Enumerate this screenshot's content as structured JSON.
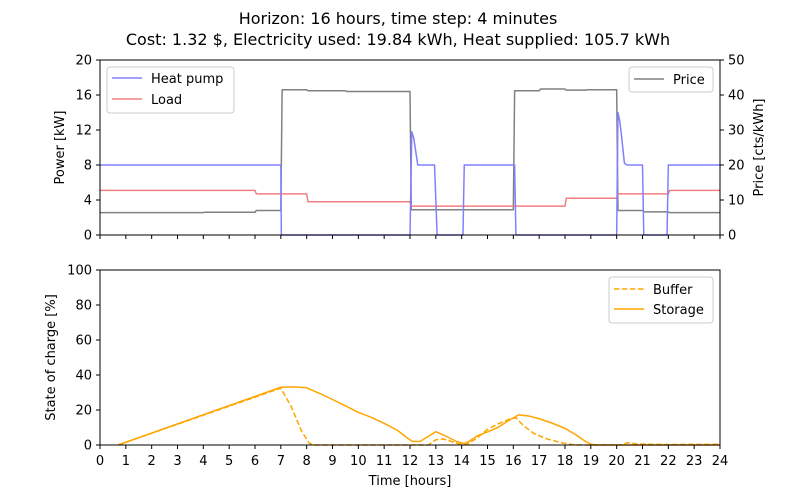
{
  "figure": {
    "title_line1": "Horizon: 16 hours, time step: 4 minutes",
    "title_line2": "Cost: 1.32 $, Electricity used: 19.84 kWh, Heat supplied: 105.7 kWh"
  },
  "chart_data": [
    {
      "type": "line",
      "ylabel": "Power [kW]",
      "y2label": "Price [cts/kWh]",
      "xlim": [
        0,
        24
      ],
      "ylim": [
        0,
        20
      ],
      "y2lim": [
        0,
        50
      ],
      "yticks": [
        0,
        4,
        8,
        12,
        16,
        20
      ],
      "y2ticks": [
        0,
        10,
        20,
        30,
        40,
        50
      ],
      "legend_left": "top-left",
      "legend_right": "top-right",
      "grid": false,
      "series": [
        {
          "name": "Heat pump",
          "axis": "left",
          "color": "#8080ff",
          "points": [
            [
              0,
              8
            ],
            [
              7,
              8
            ],
            [
              7.02,
              0
            ],
            [
              12,
              0
            ],
            [
              12.07,
              11.8
            ],
            [
              12.15,
              11
            ],
            [
              12.3,
              8
            ],
            [
              12.95,
              8
            ],
            [
              13.05,
              0
            ],
            [
              14.05,
              0
            ],
            [
              14.1,
              8
            ],
            [
              16.05,
              8
            ],
            [
              16.1,
              0
            ],
            [
              20,
              0
            ],
            [
              20.05,
              14
            ],
            [
              20.12,
              13
            ],
            [
              20.2,
              11
            ],
            [
              20.3,
              8.2
            ],
            [
              20.4,
              8
            ],
            [
              21,
              8
            ],
            [
              21.05,
              0
            ],
            [
              21.95,
              0
            ],
            [
              22,
              8
            ],
            [
              24,
              8
            ]
          ]
        },
        {
          "name": "Load",
          "axis": "left",
          "color": "#f08080",
          "points": [
            [
              0,
              5.1
            ],
            [
              6,
              5.1
            ],
            [
              6.05,
              4.7
            ],
            [
              8,
              4.7
            ],
            [
              8.05,
              3.8
            ],
            [
              12,
              3.8
            ],
            [
              12.05,
              3.3
            ],
            [
              18,
              3.3
            ],
            [
              18.05,
              4.2
            ],
            [
              20,
              4.2
            ],
            [
              20.05,
              4.7
            ],
            [
              22,
              4.7
            ],
            [
              22.05,
              5.1
            ],
            [
              24,
              5.1
            ]
          ]
        },
        {
          "name": "Price",
          "axis": "right",
          "color": "#808080",
          "points": [
            [
              0,
              6.4
            ],
            [
              4,
              6.4
            ],
            [
              4.05,
              6.5
            ],
            [
              6,
              6.5
            ],
            [
              6.05,
              7
            ],
            [
              7,
              7
            ],
            [
              7.05,
              41.5
            ],
            [
              8,
              41.5
            ],
            [
              8.05,
              41.2
            ],
            [
              9.5,
              41.2
            ],
            [
              9.55,
              41
            ],
            [
              12,
              41
            ],
            [
              12.05,
              7.2
            ],
            [
              16,
              7.2
            ],
            [
              16.05,
              41.2
            ],
            [
              17,
              41.2
            ],
            [
              17.05,
              41.7
            ],
            [
              18,
              41.7
            ],
            [
              18.05,
              41.4
            ],
            [
              18.8,
              41.4
            ],
            [
              18.85,
              41.5
            ],
            [
              20,
              41.5
            ],
            [
              20.05,
              7
            ],
            [
              21,
              7
            ],
            [
              21.05,
              6.6
            ],
            [
              22,
              6.6
            ],
            [
              22.05,
              6.4
            ],
            [
              24,
              6.4
            ]
          ]
        }
      ]
    },
    {
      "type": "line",
      "xlabel": "Time [hours]",
      "ylabel": "State of charge [%]",
      "xlim": [
        0,
        24
      ],
      "ylim": [
        0,
        100
      ],
      "xticks": [
        0,
        1,
        2,
        3,
        4,
        5,
        6,
        7,
        8,
        9,
        10,
        11,
        12,
        13,
        14,
        15,
        16,
        17,
        18,
        19,
        20,
        21,
        22,
        23,
        24
      ],
      "yticks": [
        0,
        20,
        40,
        60,
        80,
        100
      ],
      "legend": "top-right",
      "grid": false,
      "series": [
        {
          "name": "Buffer",
          "color": "#ffa500",
          "dash": "dashed",
          "points": [
            [
              0.7,
              0
            ],
            [
              7,
              32.5
            ],
            [
              7.4,
              22
            ],
            [
              7.8,
              8
            ],
            [
              8.1,
              1
            ],
            [
              8.3,
              0
            ],
            [
              12.7,
              0
            ],
            [
              13,
              3
            ],
            [
              13.3,
              3.4
            ],
            [
              13.6,
              2
            ],
            [
              13.9,
              0.6
            ],
            [
              14.2,
              0.3
            ],
            [
              14.6,
              4
            ],
            [
              15,
              9
            ],
            [
              15.4,
              12
            ],
            [
              15.8,
              14.5
            ],
            [
              16.1,
              15.6
            ],
            [
              16.4,
              11
            ],
            [
              16.8,
              6.5
            ],
            [
              17.3,
              3.5
            ],
            [
              17.8,
              1.5
            ],
            [
              18.3,
              0.2
            ],
            [
              18.6,
              0
            ],
            [
              20.2,
              0
            ],
            [
              20.4,
              1.3
            ],
            [
              20.8,
              0.6
            ],
            [
              21.3,
              0.4
            ],
            [
              22,
              0.3
            ],
            [
              24,
              0.4
            ]
          ]
        },
        {
          "name": "Storage",
          "color": "#ffa500",
          "dash": "solid",
          "points": [
            [
              0.7,
              0
            ],
            [
              7,
              33
            ],
            [
              7.5,
              33.2
            ],
            [
              8,
              32.7
            ],
            [
              8.5,
              29.5
            ],
            [
              9,
              26
            ],
            [
              9.5,
              22.4
            ],
            [
              10,
              18.7
            ],
            [
              10.5,
              15.8
            ],
            [
              11,
              12.4
            ],
            [
              11.5,
              8.5
            ],
            [
              11.9,
              4
            ],
            [
              12.1,
              2
            ],
            [
              12.4,
              2.1
            ],
            [
              12.6,
              4
            ],
            [
              13,
              7.6
            ],
            [
              13.4,
              5
            ],
            [
              13.8,
              2
            ],
            [
              14.1,
              0.8
            ],
            [
              14.3,
              2.2
            ],
            [
              14.6,
              5.2
            ],
            [
              15,
              7.5
            ],
            [
              15.4,
              10
            ],
            [
              15.8,
              13.8
            ],
            [
              16.2,
              17.2
            ],
            [
              16.6,
              16.6
            ],
            [
              17,
              15
            ],
            [
              17.5,
              12.5
            ],
            [
              18,
              9.5
            ],
            [
              18.4,
              6
            ],
            [
              18.8,
              2
            ],
            [
              19,
              0.5
            ],
            [
              19.2,
              0
            ],
            [
              24,
              0
            ]
          ]
        }
      ]
    }
  ]
}
